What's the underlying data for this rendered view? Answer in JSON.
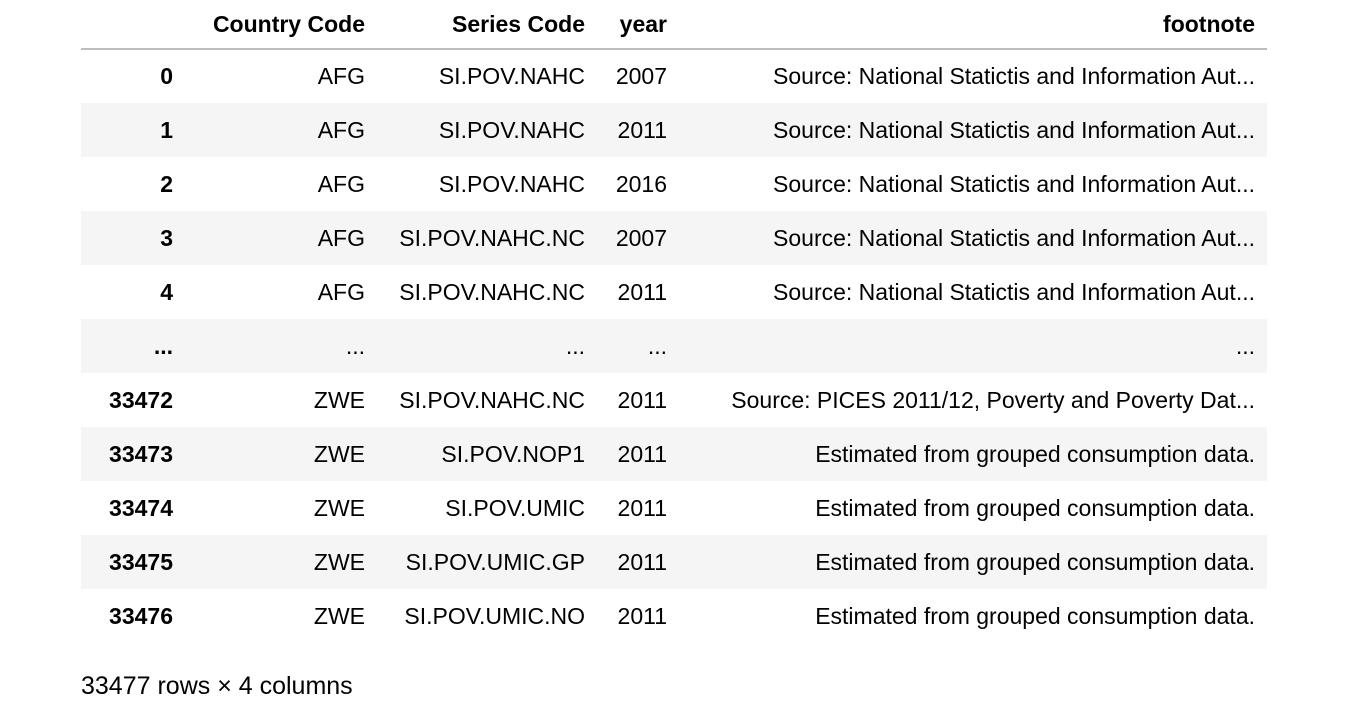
{
  "table": {
    "columns": [
      "",
      "Country Code",
      "Series Code",
      "year",
      "footnote"
    ],
    "rows": [
      {
        "index": "0",
        "country": "AFG",
        "series": "SI.POV.NAHC",
        "year": "2007",
        "footnote": "Source: National Statictis and Information Aut..."
      },
      {
        "index": "1",
        "country": "AFG",
        "series": "SI.POV.NAHC",
        "year": "2011",
        "footnote": "Source: National Statictis and Information Aut..."
      },
      {
        "index": "2",
        "country": "AFG",
        "series": "SI.POV.NAHC",
        "year": "2016",
        "footnote": "Source: National Statictis and Information Aut..."
      },
      {
        "index": "3",
        "country": "AFG",
        "series": "SI.POV.NAHC.NC",
        "year": "2007",
        "footnote": "Source: National Statictis and Information Aut..."
      },
      {
        "index": "4",
        "country": "AFG",
        "series": "SI.POV.NAHC.NC",
        "year": "2011",
        "footnote": "Source: National Statictis and Information Aut..."
      },
      {
        "index": "...",
        "country": "...",
        "series": "...",
        "year": "...",
        "footnote": "..."
      },
      {
        "index": "33472",
        "country": "ZWE",
        "series": "SI.POV.NAHC.NC",
        "year": "2011",
        "footnote": "Source: PICES 2011/12, Poverty and Poverty Dat..."
      },
      {
        "index": "33473",
        "country": "ZWE",
        "series": "SI.POV.NOP1",
        "year": "2011",
        "footnote": "Estimated from grouped consumption data."
      },
      {
        "index": "33474",
        "country": "ZWE",
        "series": "SI.POV.UMIC",
        "year": "2011",
        "footnote": "Estimated from grouped consumption data."
      },
      {
        "index": "33475",
        "country": "ZWE",
        "series": "SI.POV.UMIC.GP",
        "year": "2011",
        "footnote": "Estimated from grouped consumption data."
      },
      {
        "index": "33476",
        "country": "ZWE",
        "series": "SI.POV.UMIC.NO",
        "year": "2011",
        "footnote": "Estimated from grouped consumption data."
      }
    ]
  },
  "shape_text": "33477 rows × 4 columns",
  "colors": {
    "stripe": "#f5f5f5",
    "header_rule": "#bdbdbd"
  }
}
